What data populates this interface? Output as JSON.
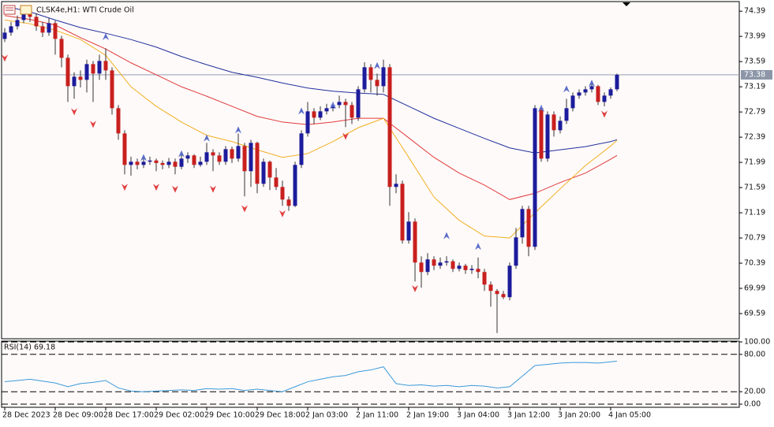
{
  "chart_data": {
    "type": "candlestick",
    "title": "CLSK4e,H1: WTI Crude Oil",
    "categories": [
      "28 Dec 2023",
      null,
      null,
      null,
      null,
      null,
      null,
      null,
      "28 Dec 09:00",
      null,
      null,
      null,
      null,
      null,
      null,
      null,
      "28 Dec 17:00",
      null,
      null,
      null,
      null,
      null,
      null,
      null,
      "29 Dec 02:00",
      null,
      null,
      null,
      null,
      null,
      null,
      null,
      "29 Dec 10:00",
      null,
      null,
      null,
      null,
      null,
      null,
      null,
      "29 Dec 18:00",
      null,
      null,
      null,
      null,
      null,
      null,
      null,
      "2 Jan 03:00",
      null,
      null,
      null,
      null,
      null,
      null,
      null,
      "2 Jan 11:00",
      null,
      null,
      null,
      null,
      null,
      null,
      null,
      "2 Jan 19:00",
      null,
      null,
      null,
      null,
      null,
      null,
      null,
      "3 Jan 04:00",
      null,
      null,
      null,
      null,
      null,
      null,
      null,
      "3 Jan 12:00",
      null,
      null,
      null,
      null,
      null,
      null,
      null,
      "3 Jan 20:00",
      null,
      null,
      null,
      null,
      null,
      null,
      null,
      "4 Jan 05:00",
      null
    ],
    "open": [
      73.95,
      74.05,
      74.15,
      74.25,
      74.35,
      74.3,
      74.15,
      74.05,
      74.2,
      73.95,
      73.65,
      73.2,
      73.35,
      73.3,
      73.55,
      73.4,
      73.6,
      73.45,
      72.85,
      72.45,
      71.95,
      72.0,
      71.95,
      72.0,
      72.02,
      71.98,
      71.95,
      72.0,
      71.92,
      72.05,
      72.1,
      71.95,
      72.0,
      72.15,
      72.1,
      72.0,
      72.2,
      72.05,
      72.25,
      71.85,
      72.3,
      71.65,
      72.0,
      71.75,
      71.6,
      71.4,
      71.3,
      71.95,
      72.45,
      72.8,
      72.7,
      72.8,
      72.85,
      72.9,
      72.95,
      72.9,
      72.7,
      73.15,
      73.5,
      73.3,
      73.2,
      73.5,
      71.6,
      71.65,
      70.75,
      71.05,
      70.4,
      70.25,
      70.45,
      70.35,
      70.4,
      70.42,
      70.3,
      70.35,
      70.28,
      70.3,
      70.25,
      70.05,
      69.95,
      69.9,
      69.85,
      70.35,
      70.8,
      71.25,
      70.65,
      72.85,
      72.05,
      72.75,
      72.5,
      72.65,
      72.85,
      73.05,
      73.1,
      73.15,
      73.2,
      72.95,
      73.05,
      73.15
    ],
    "high": [
      74.12,
      74.22,
      74.32,
      74.42,
      74.45,
      74.36,
      74.22,
      74.28,
      74.24,
      74.0,
      73.7,
      73.42,
      73.45,
      73.62,
      73.6,
      73.7,
      73.8,
      73.5,
      72.9,
      72.5,
      72.08,
      72.05,
      72.06,
      72.08,
      72.05,
      72.02,
      72.06,
      72.05,
      72.12,
      72.15,
      72.12,
      72.08,
      72.3,
      72.2,
      72.15,
      72.25,
      72.24,
      72.45,
      72.3,
      72.35,
      72.32,
      72.05,
      72.02,
      71.9,
      71.7,
      71.45,
      72.0,
      72.5,
      72.95,
      72.85,
      72.88,
      72.92,
      72.95,
      73.05,
      73.0,
      72.95,
      73.2,
      73.58,
      73.55,
      73.4,
      73.62,
      73.55,
      71.8,
      71.7,
      71.2,
      71.1,
      70.5,
      70.55,
      70.5,
      70.48,
      70.5,
      70.45,
      70.4,
      70.38,
      70.36,
      70.48,
      70.3,
      70.1,
      69.98,
      69.95,
      70.4,
      70.95,
      71.3,
      71.3,
      72.9,
      72.9,
      72.8,
      72.8,
      72.72,
      73.0,
      73.1,
      73.15,
      73.2,
      73.25,
      73.22,
      73.1,
      73.18,
      73.4
    ],
    "low": [
      73.9,
      74.0,
      74.1,
      74.2,
      74.22,
      74.08,
      73.98,
      74.0,
      73.7,
      73.5,
      72.95,
      73.0,
      73.18,
      73.1,
      72.95,
      73.3,
      73.3,
      72.75,
      72.35,
      71.8,
      71.78,
      71.88,
      71.9,
      71.95,
      71.85,
      71.88,
      71.9,
      71.8,
      71.88,
      71.98,
      71.9,
      71.92,
      71.95,
      71.85,
      71.95,
      71.95,
      71.98,
      72.0,
      71.45,
      71.6,
      71.5,
      71.6,
      71.55,
      71.55,
      71.3,
      71.22,
      71.28,
      71.9,
      72.4,
      72.6,
      72.66,
      72.75,
      72.8,
      72.85,
      72.55,
      72.6,
      72.65,
      73.1,
      73.1,
      73.05,
      73.1,
      71.3,
      71.5,
      70.7,
      70.7,
      70.1,
      70.0,
      70.2,
      70.28,
      70.3,
      70.35,
      70.25,
      70.26,
      70.22,
      70.22,
      70.15,
      69.95,
      69.7,
      69.28,
      69.82,
      69.8,
      70.3,
      70.7,
      70.5,
      70.6,
      72.0,
      72.0,
      72.4,
      72.45,
      72.6,
      72.8,
      73.0,
      73.05,
      73.1,
      72.9,
      72.88,
      73.0,
      73.12
    ],
    "close": [
      74.05,
      74.15,
      74.25,
      74.35,
      74.3,
      74.15,
      74.05,
      74.2,
      73.95,
      73.65,
      73.2,
      73.35,
      73.3,
      73.55,
      73.4,
      73.6,
      73.45,
      72.85,
      72.45,
      71.95,
      72.0,
      71.95,
      72.0,
      72.02,
      71.98,
      71.95,
      72.0,
      71.92,
      72.05,
      72.1,
      71.95,
      72.0,
      72.15,
      72.1,
      72.0,
      72.2,
      72.05,
      72.25,
      71.85,
      72.3,
      71.65,
      72.0,
      71.75,
      71.6,
      71.4,
      71.3,
      71.95,
      72.45,
      72.8,
      72.7,
      72.8,
      72.85,
      72.9,
      72.95,
      72.9,
      72.7,
      73.15,
      73.5,
      73.3,
      73.2,
      73.5,
      71.6,
      71.65,
      70.75,
      71.05,
      70.4,
      70.25,
      70.45,
      70.35,
      70.4,
      70.42,
      70.3,
      70.35,
      70.28,
      70.3,
      70.25,
      70.05,
      69.95,
      69.9,
      69.85,
      70.35,
      70.8,
      71.25,
      70.65,
      72.85,
      72.05,
      72.75,
      72.5,
      72.65,
      72.85,
      73.05,
      73.1,
      73.15,
      73.2,
      72.95,
      73.05,
      73.15,
      73.38
    ],
    "up_color": "#1c1c9c",
    "down_color": "#c8201e",
    "ylim": [
      69.19,
      74.53
    ],
    "yticks": [
      74.39,
      73.99,
      73.59,
      73.19,
      72.79,
      72.39,
      71.99,
      71.59,
      71.19,
      70.79,
      70.39,
      69.99,
      69.59
    ],
    "last_price": 73.38,
    "overlays": [
      {
        "type": "line",
        "color": "#1f2f9a",
        "x": [
          0,
          4,
          8,
          12,
          16,
          20,
          24,
          28,
          32,
          36,
          40,
          44,
          48,
          52,
          56,
          60,
          64,
          68,
          72,
          76,
          80,
          84,
          88,
          92,
          96,
          97
        ],
        "values": [
          74.47,
          74.38,
          74.25,
          74.13,
          74.04,
          73.94,
          73.82,
          73.67,
          73.54,
          73.42,
          73.34,
          73.25,
          73.17,
          73.12,
          73.09,
          73.07,
          72.88,
          72.69,
          72.53,
          72.37,
          72.22,
          72.14,
          72.19,
          72.24,
          72.32,
          72.35
        ]
      },
      {
        "type": "line",
        "color": "#e03a3a",
        "x": [
          0,
          4,
          8,
          12,
          16,
          20,
          24,
          28,
          32,
          36,
          40,
          44,
          48,
          52,
          56,
          60,
          64,
          68,
          72,
          76,
          80,
          84,
          88,
          92,
          96,
          97
        ],
        "values": [
          74.32,
          74.26,
          74.17,
          73.97,
          73.79,
          73.57,
          73.38,
          73.19,
          73.04,
          72.88,
          72.72,
          72.63,
          72.59,
          72.63,
          72.69,
          72.69,
          72.38,
          72.07,
          71.82,
          71.63,
          71.4,
          71.5,
          71.67,
          71.82,
          72.04,
          72.1
        ]
      },
      {
        "type": "line",
        "color": "#f0b020",
        "x": [
          0,
          4,
          8,
          12,
          16,
          20,
          24,
          28,
          32,
          36,
          40,
          44,
          48,
          52,
          56,
          60,
          64,
          68,
          72,
          76,
          80,
          84,
          88,
          92,
          96,
          97
        ],
        "values": [
          74.25,
          74.19,
          74.09,
          73.94,
          73.69,
          73.19,
          72.88,
          72.63,
          72.42,
          72.32,
          72.19,
          72.07,
          72.13,
          72.32,
          72.54,
          72.69,
          72.07,
          71.44,
          71.07,
          70.82,
          70.79,
          71.19,
          71.57,
          71.94,
          72.25,
          72.34
        ]
      }
    ],
    "markers": [
      {
        "type": "arrow-up",
        "color": "#5a6ec8",
        "x": [
          16,
          22,
          28,
          32,
          37,
          47,
          52,
          59,
          70,
          75,
          85,
          89,
          93
        ],
        "values": [
          73.98,
          72.06,
          72.12,
          72.37,
          72.5,
          72.8,
          72.89,
          73.52,
          70.82,
          70.65,
          72.84,
          73.15,
          73.24
        ]
      },
      {
        "type": "arrow-down",
        "color": "#e04040",
        "x": [
          0,
          11,
          14,
          19,
          24,
          27,
          33,
          38,
          44,
          54,
          65,
          95
        ],
        "values": [
          73.65,
          72.8,
          72.6,
          71.6,
          71.6,
          71.57,
          71.57,
          71.26,
          71.18,
          72.41,
          69.99,
          72.76
        ]
      }
    ],
    "rsi": {
      "type": "line",
      "label": "RSI(14) 69.18",
      "color": "#3a9ad9",
      "x": [
        0,
        2,
        4,
        6,
        8,
        10,
        12,
        14,
        16,
        18,
        20,
        22,
        24,
        26,
        28,
        30,
        32,
        34,
        36,
        38,
        40,
        42,
        44,
        46,
        48,
        50,
        52,
        54,
        56,
        58,
        60,
        62,
        64,
        66,
        68,
        70,
        72,
        74,
        76,
        78,
        80,
        82,
        84,
        86,
        88,
        90,
        92,
        94,
        96,
        97
      ],
      "values": [
        36,
        38,
        40,
        37,
        34,
        28,
        33,
        35,
        38,
        26,
        21,
        20,
        21,
        22,
        23,
        22,
        25,
        24,
        25,
        22,
        24,
        22,
        20,
        28,
        36,
        40,
        44,
        46,
        52,
        55,
        60,
        33,
        30,
        31,
        29,
        30,
        28,
        30,
        29,
        26,
        28,
        45,
        62,
        64,
        66,
        67,
        67,
        66,
        68,
        69.18
      ],
      "ylim": [
        0,
        100
      ],
      "yticks": [
        {
          "value": 100,
          "label": "100.00"
        },
        {
          "value": 80,
          "label": "80.00"
        },
        {
          "value": 20,
          "label": "20.00"
        },
        {
          "value": 0,
          "label": "0.00"
        }
      ]
    }
  }
}
